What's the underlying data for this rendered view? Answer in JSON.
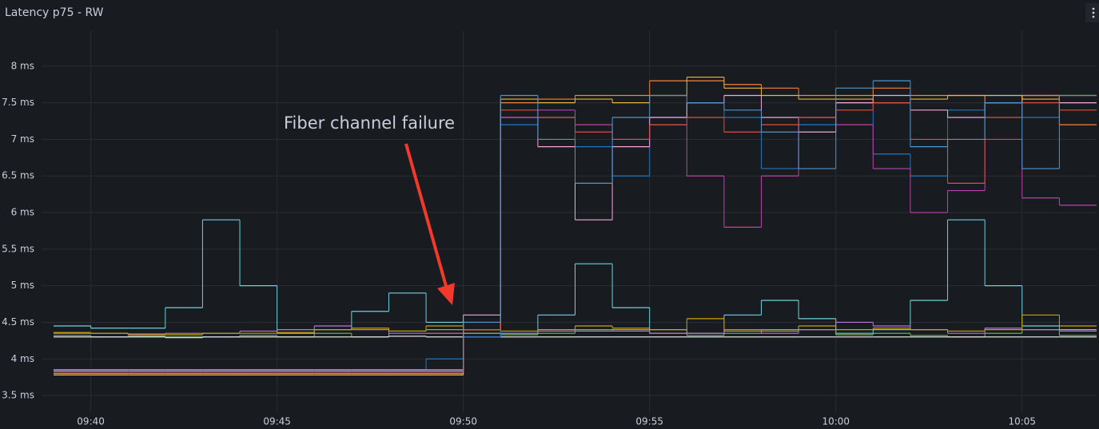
{
  "chart_data": {
    "type": "line",
    "title": "Latency p75 - RW",
    "annotation": "Fiber channel failure",
    "annotation_color": "#f2392b",
    "step": true,
    "grid": true,
    "x": [
      "09:39",
      "09:40",
      "09:41",
      "09:42",
      "09:43",
      "09:44",
      "09:45",
      "09:46",
      "09:47",
      "09:48",
      "09:49",
      "09:50",
      "09:51",
      "09:52",
      "09:53",
      "09:54",
      "09:55",
      "09:56",
      "09:57",
      "09:58",
      "09:59",
      "10:00",
      "10:01",
      "10:02",
      "10:03",
      "10:04",
      "10:05",
      "10:06"
    ],
    "xlim": [
      "09:39",
      "10:07"
    ],
    "xticks": [
      "09:40",
      "09:45",
      "09:50",
      "09:55",
      "10:00",
      "10:05"
    ],
    "ylim": [
      3.35,
      8.4
    ],
    "yticks": [
      {
        "value": 3.5,
        "label": "3.5 ms"
      },
      {
        "value": 4,
        "label": "4 ms"
      },
      {
        "value": 4.5,
        "label": "4.5 ms"
      },
      {
        "value": 5,
        "label": "5 ms"
      },
      {
        "value": 5.5,
        "label": "5.5 ms"
      },
      {
        "value": 6,
        "label": "6 ms"
      },
      {
        "value": 6.5,
        "label": "6.5 ms"
      },
      {
        "value": 7,
        "label": "7 ms"
      },
      {
        "value": 7.5,
        "label": "7.5 ms"
      },
      {
        "value": 8,
        "label": "8 ms"
      }
    ],
    "series": [
      {
        "color": "#6ed0e0",
        "values": [
          4.45,
          4.42,
          4.42,
          4.7,
          5.9,
          5.0,
          4.35,
          4.4,
          4.65,
          4.9,
          4.5,
          4.35,
          4.35,
          4.6,
          5.3,
          4.7,
          4.4,
          4.35,
          4.6,
          4.8,
          4.55,
          4.35,
          4.4,
          4.8,
          5.9,
          5.0,
          4.45,
          4.4
        ]
      },
      {
        "color": "#7eb26d",
        "values": [
          4.32,
          4.3,
          4.31,
          4.3,
          4.3,
          4.32,
          4.3,
          4.35,
          4.3,
          4.38,
          4.4,
          4.35,
          4.33,
          4.35,
          4.38,
          4.4,
          4.35,
          4.32,
          4.35,
          4.38,
          4.4,
          4.33,
          4.35,
          4.32,
          4.3,
          4.35,
          4.4,
          4.32
        ]
      },
      {
        "color": "#e0e0e0",
        "values": [
          4.3,
          4.3,
          4.3,
          4.29,
          4.3,
          4.3,
          4.3,
          4.3,
          4.3,
          4.31,
          4.3,
          4.3,
          4.3,
          4.3,
          4.3,
          4.3,
          4.3,
          4.3,
          4.3,
          4.3,
          4.3,
          4.3,
          4.3,
          4.3,
          4.3,
          4.3,
          4.3,
          4.3
        ]
      },
      {
        "color": "#b877d9",
        "values": [
          4.35,
          4.35,
          4.33,
          4.35,
          4.35,
          4.38,
          4.4,
          4.45,
          4.4,
          4.35,
          4.35,
          4.3,
          4.35,
          4.38,
          4.4,
          4.38,
          4.35,
          4.35,
          4.4,
          4.35,
          4.4,
          4.5,
          4.45,
          4.4,
          4.35,
          4.42,
          4.4,
          4.38
        ]
      },
      {
        "color": "#cca300",
        "values": [
          4.36,
          4.35,
          4.34,
          4.33,
          4.35,
          4.35,
          4.36,
          4.4,
          4.42,
          4.38,
          4.45,
          4.4,
          4.38,
          4.4,
          4.45,
          4.42,
          4.4,
          4.55,
          4.38,
          4.4,
          4.45,
          4.4,
          4.42,
          4.4,
          4.38,
          4.4,
          4.6,
          4.45
        ]
      },
      {
        "color": "#1f78c1",
        "values": [
          3.85,
          3.85,
          3.85,
          3.85,
          3.85,
          3.85,
          3.85,
          3.85,
          3.85,
          3.85,
          4.0,
          4.3,
          7.2,
          7.3,
          6.9,
          6.5,
          7.3,
          7.5,
          7.3,
          6.6,
          7.2,
          7.5,
          6.8,
          6.5,
          7.4,
          7.6,
          7.3,
          7.5
        ]
      },
      {
        "color": "#f4a6d7",
        "values": [
          3.85,
          3.85,
          3.85,
          3.85,
          3.85,
          3.85,
          3.85,
          3.85,
          3.85,
          3.85,
          3.85,
          4.6,
          7.3,
          6.9,
          5.9,
          6.9,
          7.3,
          7.5,
          7.6,
          7.3,
          7.1,
          7.5,
          7.6,
          7.4,
          7.3,
          7.5,
          7.6,
          7.5
        ]
      },
      {
        "color": "#ba43a9",
        "values": [
          3.8,
          3.8,
          3.8,
          3.8,
          3.8,
          3.8,
          3.8,
          3.8,
          3.8,
          3.8,
          3.8,
          4.5,
          7.3,
          7.4,
          7.2,
          7.0,
          7.2,
          6.5,
          5.8,
          6.5,
          7.3,
          7.2,
          6.6,
          6.0,
          6.3,
          7.0,
          6.2,
          6.1
        ]
      },
      {
        "color": "#ef843c",
        "values": [
          3.8,
          3.8,
          3.8,
          3.8,
          3.8,
          3.8,
          3.8,
          3.8,
          3.8,
          3.8,
          3.8,
          4.4,
          7.5,
          7.55,
          7.6,
          7.6,
          7.8,
          7.8,
          7.75,
          7.7,
          7.6,
          7.6,
          7.7,
          7.6,
          7.6,
          7.5,
          7.6,
          7.2
        ]
      },
      {
        "color": "#eab839",
        "values": [
          3.78,
          3.78,
          3.78,
          3.78,
          3.78,
          3.78,
          3.78,
          3.78,
          3.78,
          3.78,
          3.78,
          4.4,
          7.55,
          7.5,
          7.55,
          7.5,
          7.6,
          7.85,
          7.7,
          7.6,
          7.55,
          7.55,
          7.5,
          7.55,
          7.6,
          7.6,
          7.55,
          7.6
        ]
      },
      {
        "color": "#e24d42",
        "values": [
          3.82,
          3.82,
          3.82,
          3.82,
          3.82,
          3.82,
          3.82,
          3.82,
          3.82,
          3.82,
          3.82,
          4.4,
          7.4,
          7.3,
          7.1,
          7.0,
          7.2,
          7.3,
          7.1,
          7.2,
          7.3,
          7.4,
          7.5,
          7.0,
          6.4,
          7.3,
          7.5,
          7.4
        ]
      },
      {
        "color": "#5195ce",
        "values": [
          3.83,
          3.83,
          3.83,
          3.83,
          3.83,
          3.83,
          3.83,
          3.83,
          3.83,
          3.83,
          3.83,
          4.5,
          7.6,
          7.0,
          6.4,
          7.3,
          7.6,
          7.5,
          7.4,
          7.1,
          6.6,
          7.7,
          7.8,
          6.9,
          7.0,
          7.5,
          6.6,
          7.6
        ]
      }
    ]
  }
}
